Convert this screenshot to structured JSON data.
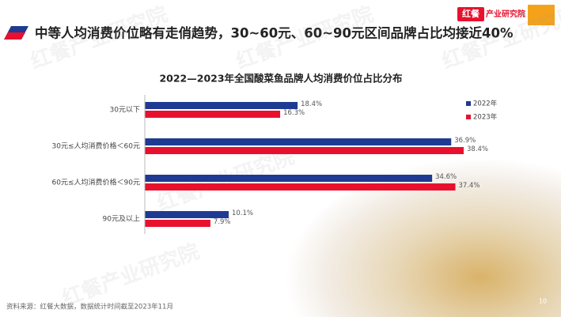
{
  "header": {
    "title": "中等人均消费价位略有走俏趋势，30~60元、60~90元区间品牌占比均接近40%",
    "logo_mark": "红餐",
    "logo_text": "产业研究院",
    "watermark": "红餐产业研究院"
  },
  "chart_data": {
    "type": "bar",
    "orientation": "horizontal",
    "title": "2022—2023年全国酸菜鱼品牌人均消费价位占比分布",
    "categories": [
      "30元以下",
      "30元≤人均消费价格＜60元",
      "60元≤人均消费价格＜90元",
      "90元及以上"
    ],
    "series": [
      {
        "name": "2022年",
        "color": "#1f3a93",
        "values": [
          18.4,
          36.9,
          34.6,
          10.1
        ],
        "value_labels": [
          "18.4%",
          "36.9%",
          "34.6%",
          "10.1%"
        ]
      },
      {
        "name": "2023年",
        "color": "#e8112d",
        "values": [
          16.3,
          38.4,
          37.4,
          7.9
        ],
        "value_labels": [
          "16.3%",
          "38.4%",
          "37.4%",
          "7.9%"
        ]
      }
    ],
    "legend": "top-right"
  },
  "footer": {
    "source": "资料来源：红餐大数据，数据统计时间截至2023年11月",
    "page": "10"
  }
}
